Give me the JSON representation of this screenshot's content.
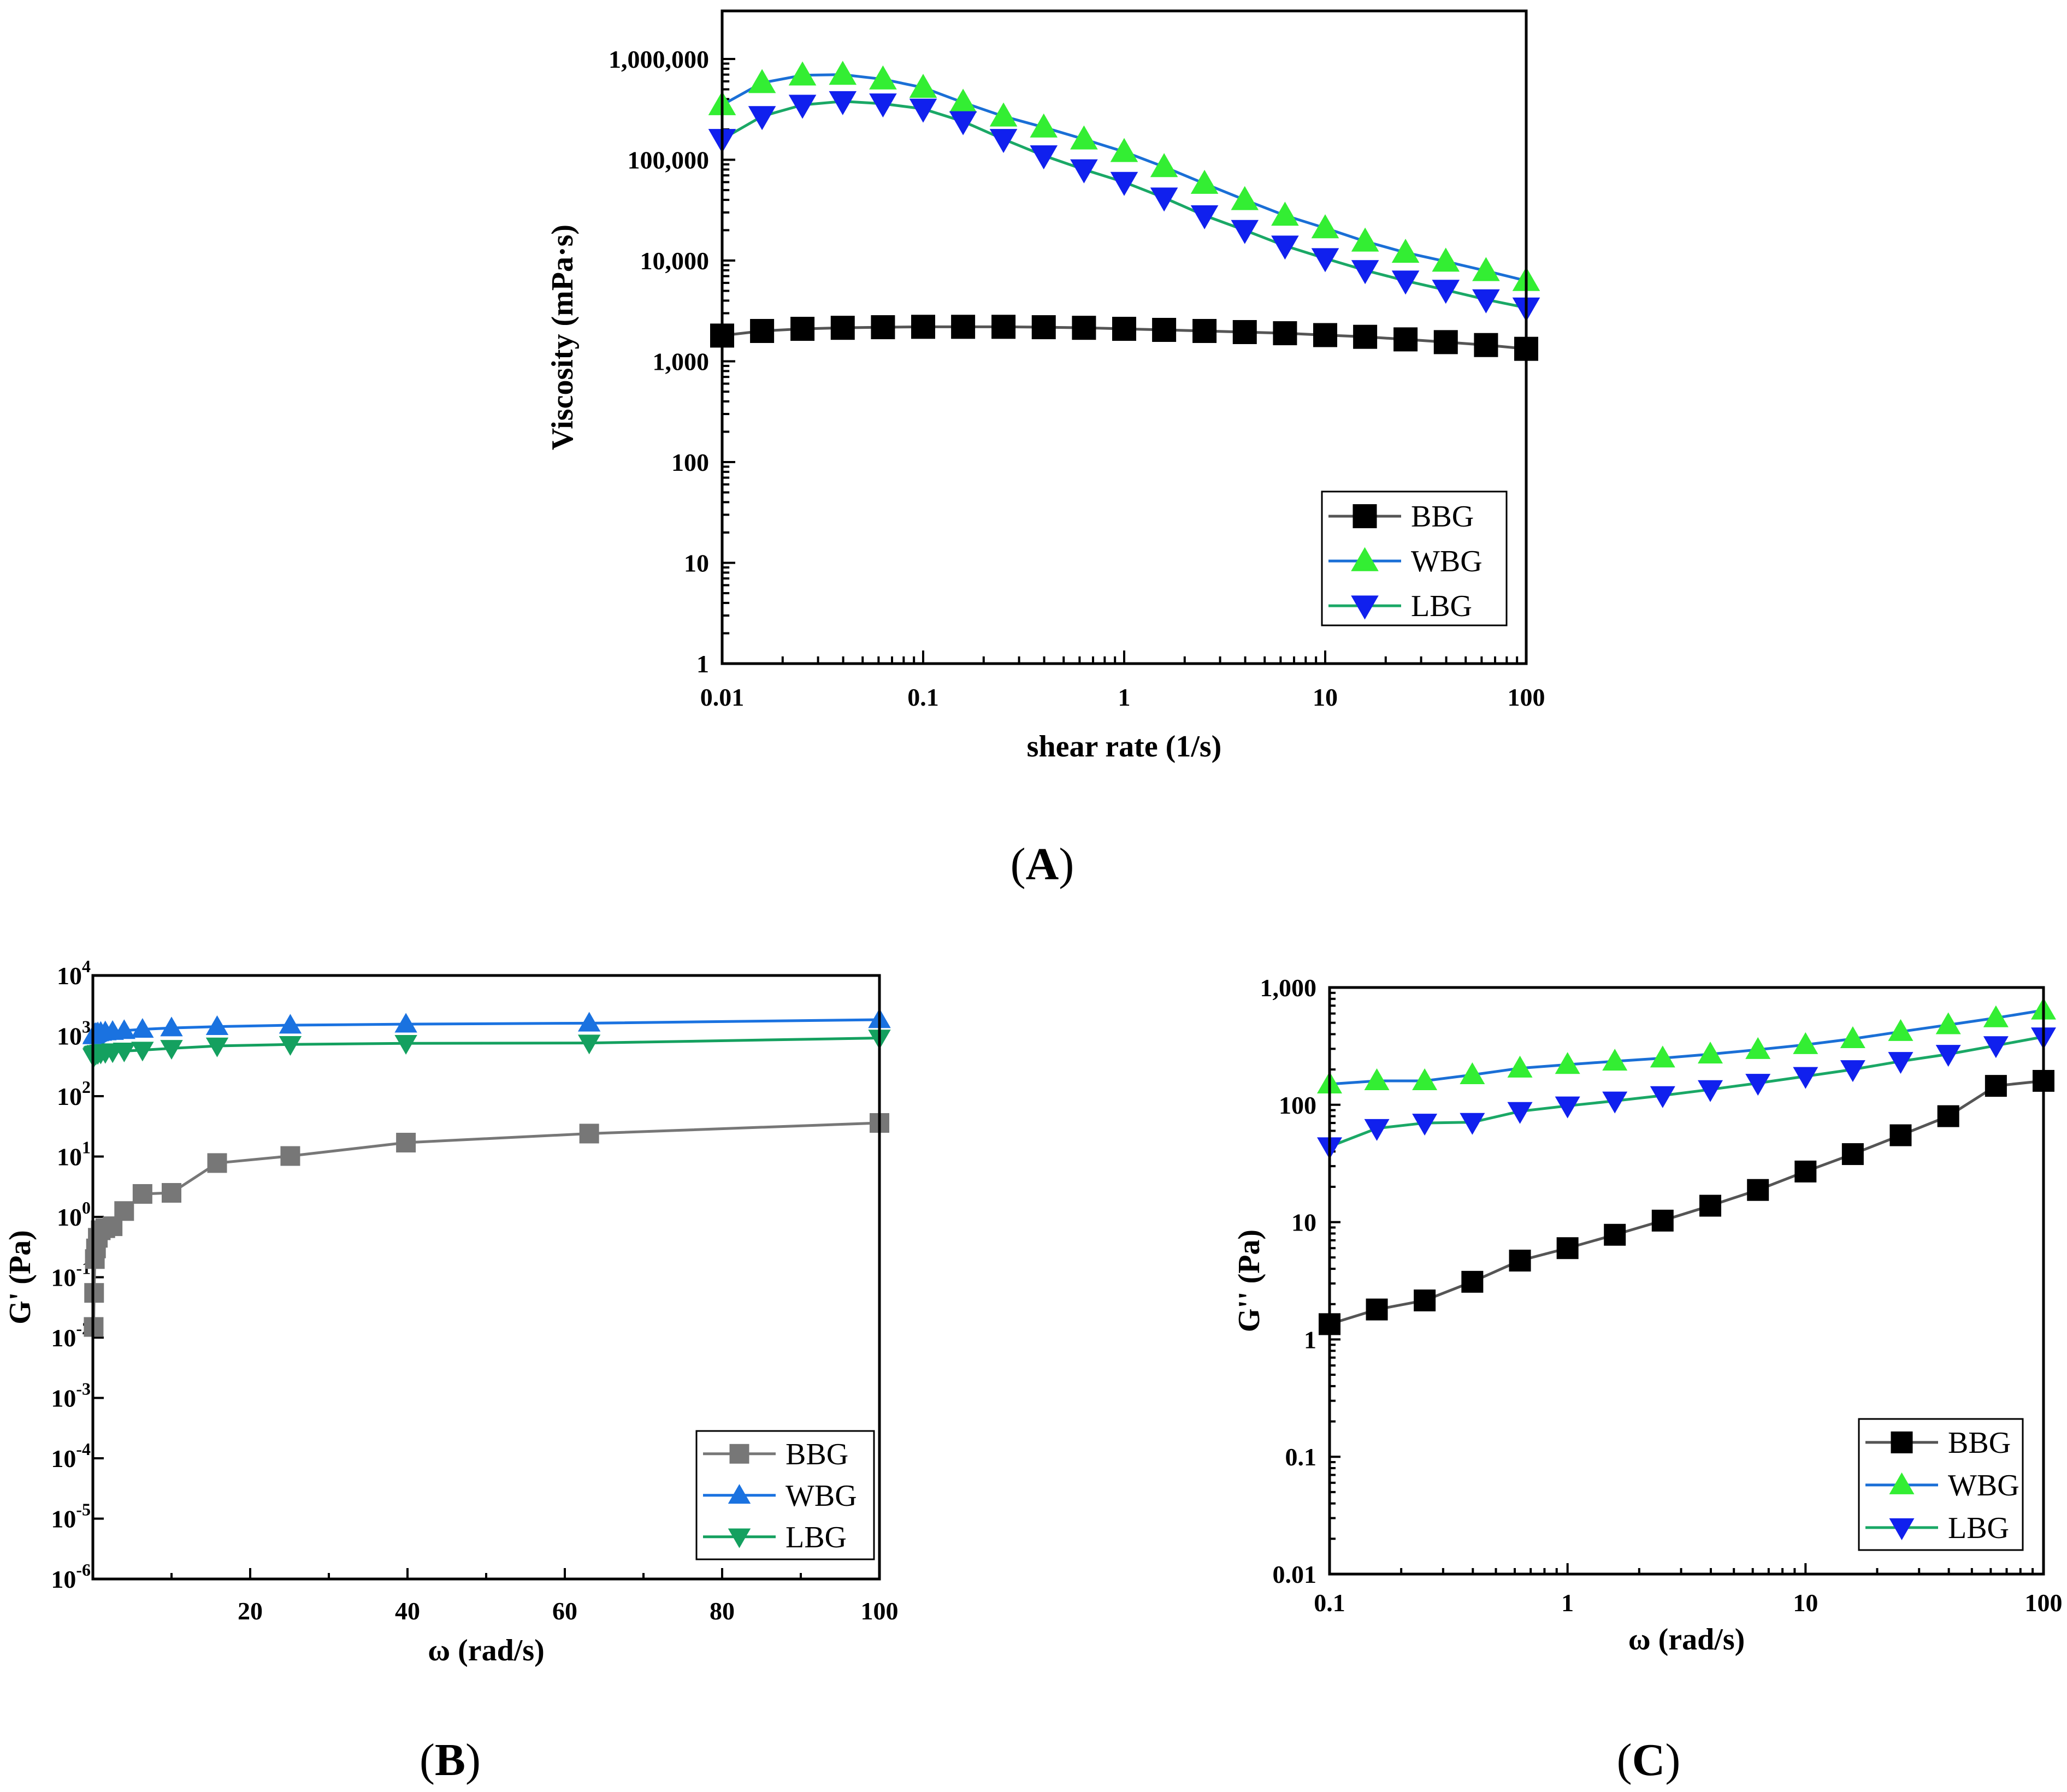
{
  "colors": {
    "bbg_line_A": "#555555",
    "bbg_marker_A": "#000000",
    "wbg_line_A": "#1a6fd6",
    "wbg_marker_A": "#33ee33",
    "lbg_line_A": "#1aa866",
    "lbg_marker_A": "#1020ee",
    "bbg_B": "#777777",
    "wbg_B": "#1a72e0",
    "lbg_B": "#14a05f"
  },
  "chart_data": [
    {
      "id": "A",
      "panel_label": "A",
      "type": "line",
      "xscale": "log",
      "yscale": "log",
      "xlabel": "shear rate (1/s)",
      "ylabel": "Viscosity (mPa·s)",
      "xlim": [
        0.01,
        100
      ],
      "ylim": [
        1,
        3000000
      ],
      "xticks": [
        0.01,
        0.1,
        1,
        10,
        100
      ],
      "xtick_labels": [
        "0.01",
        "0.1",
        "1",
        "10",
        "100"
      ],
      "yticks": [
        1,
        10,
        100,
        1000,
        10000,
        100000,
        1000000
      ],
      "ytick_labels": [
        "1",
        "10",
        "100",
        "1,000",
        "10,000",
        "100,000",
        "1,000,000"
      ],
      "legend_position": "bottom-right",
      "x": [
        0.01,
        0.0158,
        0.0251,
        0.0398,
        0.0631,
        0.1,
        0.158,
        0.251,
        0.398,
        0.631,
        1,
        1.58,
        2.51,
        3.98,
        6.31,
        10,
        15.8,
        25.1,
        39.8,
        63.1,
        100
      ],
      "series": [
        {
          "name": "BBG",
          "marker": "square",
          "values": [
            1800,
            2000,
            2100,
            2150,
            2180,
            2200,
            2200,
            2200,
            2180,
            2150,
            2100,
            2050,
            2000,
            1950,
            1900,
            1820,
            1750,
            1650,
            1550,
            1450,
            1330
          ]
        },
        {
          "name": "WBG",
          "marker": "triangle-up",
          "values": [
            350000,
            580000,
            690000,
            700000,
            630000,
            520000,
            370000,
            270000,
            210000,
            160000,
            120000,
            85000,
            58000,
            40000,
            28000,
            21000,
            15500,
            12000,
            9800,
            7900,
            6300
          ]
        },
        {
          "name": "LBG",
          "marker": "triangle-down",
          "values": [
            160000,
            270000,
            350000,
            380000,
            360000,
            320000,
            240000,
            160000,
            110000,
            80000,
            60000,
            42000,
            28000,
            20000,
            14000,
            10500,
            8000,
            6300,
            5100,
            4100,
            3400
          ]
        }
      ]
    },
    {
      "id": "B",
      "panel_label": "B",
      "type": "line",
      "xscale": "linear",
      "yscale": "log",
      "xlabel": "ω (rad/s)",
      "ylabel": "G' (Pa)",
      "xlim": [
        0,
        100
      ],
      "ylim": [
        1e-06,
        10000
      ],
      "xticks": [
        20,
        40,
        60,
        80,
        100
      ],
      "xtick_labels": [
        "20",
        "40",
        "60",
        "80",
        "100"
      ],
      "yticks": [
        1e-06,
        1e-05,
        0.0001,
        0.001,
        0.01,
        0.1,
        1,
        10,
        100,
        1000,
        10000
      ],
      "ytick_labels": [
        [
          "10",
          "-6"
        ],
        [
          "10",
          "-5"
        ],
        [
          "10",
          "-4"
        ],
        [
          "10",
          "-3"
        ],
        [
          "10",
          "-2"
        ],
        [
          "10",
          "-1"
        ],
        [
          "10",
          "0"
        ],
        [
          "10",
          "1"
        ],
        [
          "10",
          "2"
        ],
        [
          "10",
          "3"
        ],
        [
          "10",
          "4"
        ]
      ],
      "legend_position": "bottom-right",
      "series": [
        {
          "name": "BBG",
          "marker": "square",
          "x": [
            0.1,
            0.158,
            0.251,
            0.398,
            0.631,
            1,
            1.58,
            2.51,
            3.98,
            6.31,
            10,
            15.8,
            25.1,
            39.8,
            63.1,
            100
          ],
          "values": [
            0.015,
            0.055,
            0.2,
            0.3,
            0.45,
            0.6,
            0.65,
            0.7,
            1.25,
            2.4,
            2.5,
            7.8,
            10.2,
            17,
            24,
            36
          ]
        },
        {
          "name": "WBG",
          "marker": "triangle-up",
          "x": [
            0.1,
            0.158,
            0.251,
            0.398,
            0.631,
            1,
            1.58,
            2.51,
            3.98,
            6.31,
            10,
            15.8,
            25.1,
            39.8,
            63.1,
            100
          ],
          "values": [
            1000,
            1050,
            1080,
            1100,
            1120,
            1140,
            1160,
            1180,
            1220,
            1280,
            1350,
            1420,
            1500,
            1560,
            1620,
            1850
          ]
        },
        {
          "name": "LBG",
          "marker": "triangle-down",
          "x": [
            0.1,
            0.158,
            0.251,
            0.398,
            0.631,
            1,
            1.58,
            2.51,
            3.98,
            6.31,
            10,
            15.8,
            25.1,
            39.8,
            63.1,
            100
          ],
          "values": [
            450,
            470,
            490,
            500,
            510,
            520,
            530,
            545,
            560,
            580,
            620,
            680,
            720,
            750,
            760,
            920
          ]
        }
      ]
    },
    {
      "id": "C",
      "panel_label": "C",
      "type": "line",
      "xscale": "log",
      "yscale": "log",
      "xlabel": "ω (rad/s)",
      "ylabel": "G'' (Pa)",
      "xlim": [
        0.1,
        100
      ],
      "ylim": [
        0.01,
        1000
      ],
      "xticks": [
        0.1,
        1,
        10,
        100
      ],
      "xtick_labels": [
        "0.1",
        "1",
        "10",
        "100"
      ],
      "yticks": [
        0.01,
        0.1,
        1,
        10,
        100,
        1000
      ],
      "ytick_labels": [
        "0.01",
        "0.1",
        "1",
        "10",
        "100",
        "1,000"
      ],
      "legend_position": "bottom-right",
      "x": [
        0.1,
        0.158,
        0.251,
        0.398,
        0.631,
        1,
        1.58,
        2.51,
        3.98,
        6.31,
        10,
        15.8,
        25.1,
        39.8,
        63.1,
        100
      ],
      "series": [
        {
          "name": "BBG",
          "marker": "square",
          "values": [
            1.35,
            1.8,
            2.15,
            3.1,
            4.7,
            6.0,
            7.8,
            10.3,
            13.8,
            18.8,
            27,
            38,
            55,
            80,
            145,
            160
          ]
        },
        {
          "name": "WBG",
          "marker": "triangle-up",
          "values": [
            150,
            160,
            160,
            180,
            205,
            220,
            235,
            250,
            270,
            295,
            325,
            365,
            420,
            480,
            550,
            640
          ]
        },
        {
          "name": "LBG",
          "marker": "triangle-down",
          "values": [
            44,
            63,
            70,
            71,
            88,
            98,
            108,
            120,
            135,
            153,
            175,
            200,
            235,
            270,
            320,
            380
          ]
        }
      ]
    }
  ]
}
